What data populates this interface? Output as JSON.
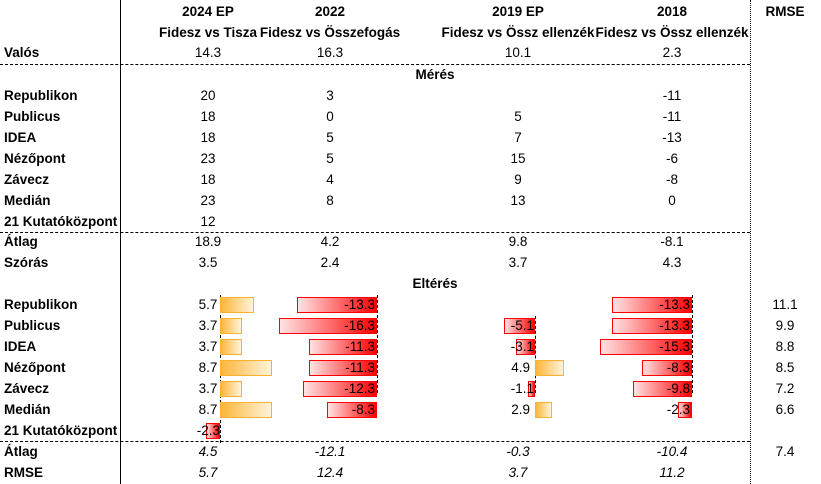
{
  "columns": [
    {
      "year": "2024 EP",
      "matchup": "Fidesz vs Tisza"
    },
    {
      "year": "2022",
      "matchup": "Fidesz vs Összefogás"
    },
    {
      "year": "2019 EP",
      "matchup": "Fidesz vs Össz ellenzék"
    },
    {
      "year": "2018",
      "matchup": "Fidesz vs Össz ellenzék"
    }
  ],
  "rmse_header": "RMSE",
  "actual": {
    "label": "Valós",
    "values": [
      "14.3",
      "16.3",
      "10.1",
      "2.3"
    ]
  },
  "measurement": {
    "title": "Mérés",
    "rows": [
      {
        "label": "Republikon",
        "values": [
          "20",
          "3",
          "",
          "-11"
        ]
      },
      {
        "label": "Publicus",
        "values": [
          "18",
          "0",
          "5",
          "-11"
        ]
      },
      {
        "label": "IDEA",
        "values": [
          "18",
          "5",
          "7",
          "-13"
        ]
      },
      {
        "label": "Nézőpont",
        "values": [
          "23",
          "5",
          "15",
          "-6"
        ]
      },
      {
        "label": "Závecz",
        "values": [
          "18",
          "4",
          "9",
          "-8"
        ]
      },
      {
        "label": "Medián",
        "values": [
          "23",
          "8",
          "13",
          "0"
        ]
      },
      {
        "label": "21 Kutatóközpont",
        "values": [
          "12",
          "",
          "",
          ""
        ]
      }
    ],
    "summary": [
      {
        "label": "Átlag",
        "values": [
          "18.9",
          "4.2",
          "9.8",
          "-8.1"
        ]
      },
      {
        "label": "Szórás",
        "values": [
          "3.5",
          "2.4",
          "3.7",
          "4.3"
        ]
      }
    ]
  },
  "deviation": {
    "title": "Eltérés",
    "rows": [
      {
        "label": "Republikon",
        "values": [
          "5.7",
          "-13.3",
          "",
          "-13.3"
        ],
        "rmse": "11.1"
      },
      {
        "label": "Publicus",
        "values": [
          "3.7",
          "-16.3",
          "-5.1",
          "-13.3"
        ],
        "rmse": "9.9"
      },
      {
        "label": "IDEA",
        "values": [
          "3.7",
          "-11.3",
          "-3.1",
          "-15.3"
        ],
        "rmse": "8.8"
      },
      {
        "label": "Nézőpont",
        "values": [
          "8.7",
          "-11.3",
          "4.9",
          "-8.3"
        ],
        "rmse": "8.5"
      },
      {
        "label": "Závecz",
        "values": [
          "3.7",
          "-12.3",
          "-1.1",
          "-9.8"
        ],
        "rmse": "7.2"
      },
      {
        "label": "Medián",
        "values": [
          "8.7",
          "-8.3",
          "2.9",
          "-2.3"
        ],
        "rmse": "6.6"
      },
      {
        "label": "21 Kutatóközpont",
        "values": [
          "-2.3",
          "",
          "",
          ""
        ],
        "rmse": ""
      }
    ],
    "summary": [
      {
        "label": "Átlag",
        "values": [
          "4.5",
          "-12.1",
          "-0.3",
          "-10.4"
        ],
        "rmse": "7.4"
      },
      {
        "label": "RMSE",
        "values": [
          "5.7",
          "12.4",
          "3.7",
          "11.2"
        ],
        "rmse": ""
      }
    ]
  },
  "colors": {
    "positive_bar": "#fcb638",
    "negative_bar": "#ff0000"
  }
}
